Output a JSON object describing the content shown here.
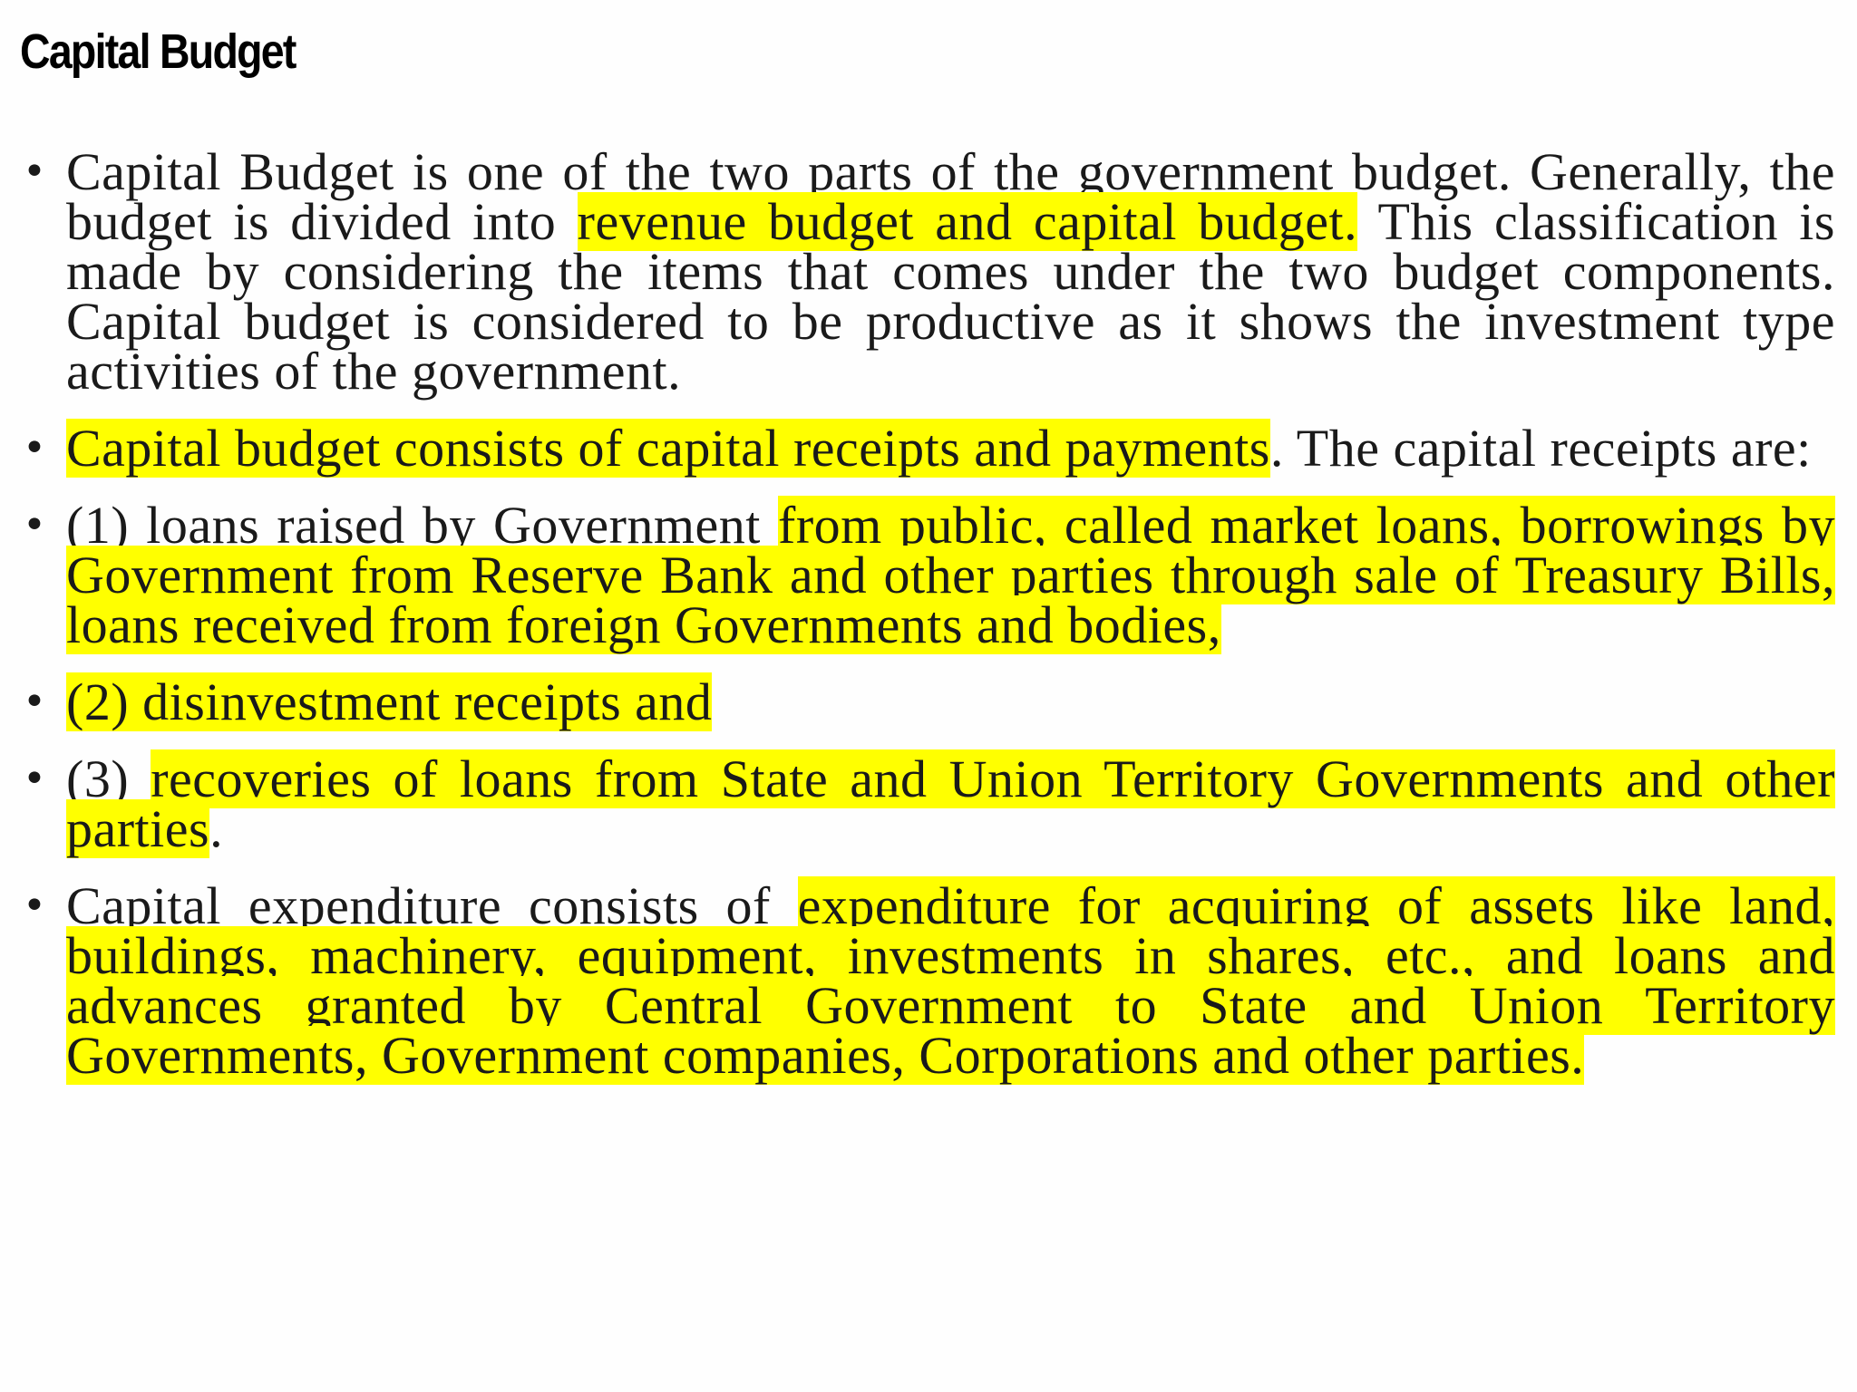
{
  "title": "Capital Budget",
  "highlight_color": "#ffff00",
  "items": [
    {
      "segments": [
        {
          "text": "Capital Budget is one of the two parts of the government budget. Generally, the budget is divided into ",
          "highlight": false
        },
        {
          "text": "revenue budget and capital budget.",
          "highlight": true
        },
        {
          "text": " This classification is made by considering the items that comes under the two budget components. Capital budget is considered to be productive as it shows the investment type activities of the government.",
          "highlight": false
        }
      ]
    },
    {
      "segments": [
        {
          "text": "Capital budget consists of capital receipts and payments",
          "highlight": true
        },
        {
          "text": ". The capital receipts are:",
          "highlight": false
        }
      ]
    },
    {
      "segments": [
        {
          "text": "(1) loans raised by Government ",
          "highlight": false
        },
        {
          "text": "from public, called market loans, borrowings by Government from Reserve Bank and other parties through sale of Treasury Bills, loans received from foreign Governments and bodies,",
          "highlight": true
        }
      ]
    },
    {
      "segments": [
        {
          "text": "(2) disinvestment receipts and",
          "highlight": true
        }
      ]
    },
    {
      "segments": [
        {
          "text": "(3) ",
          "highlight": false
        },
        {
          "text": "recoveries of loans from State and Union Territory Governments and other parties",
          "highlight": true
        },
        {
          "text": ".",
          "highlight": false
        }
      ]
    },
    {
      "segments": [
        {
          "text": "Capital expenditure consists of ",
          "highlight": false
        },
        {
          "text": "expenditure for acquiring of assets like land, buildings, machinery, equipment, investments in shares, etc., and loans and advances granted by Central Government to State and Union Territory Governments, Government companies, Corporations and other parties.",
          "highlight": true
        }
      ]
    }
  ]
}
